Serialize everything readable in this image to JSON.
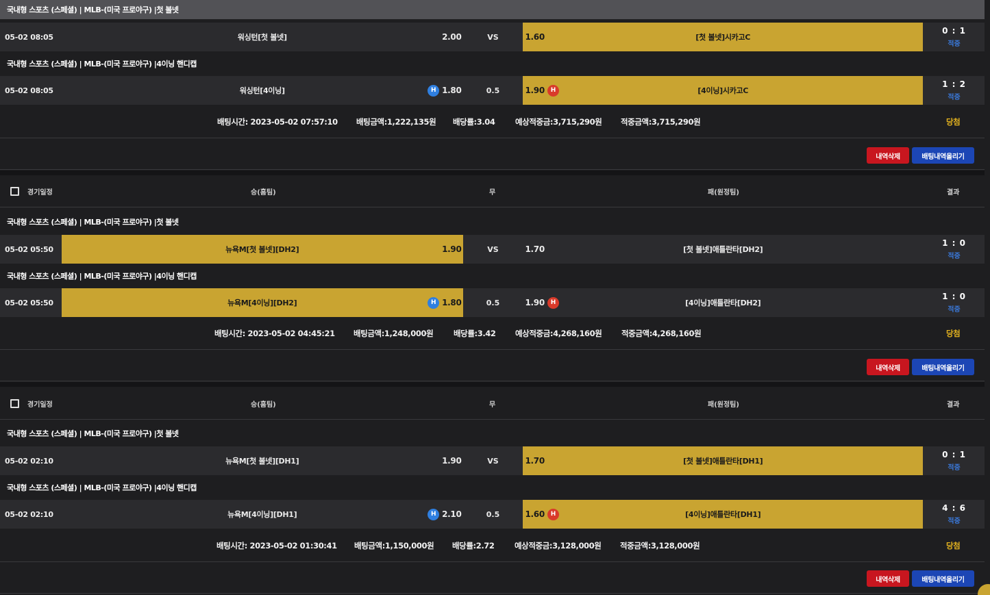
{
  "groups": [
    {
      "header": null,
      "rows": [
        {
          "league": "국내형 스포츠 (스페셜) | MLB-(미국 프로야구) |첫 볼넷",
          "date": "05-02 08:05",
          "home_team": "워싱턴[첫 볼넷]",
          "home_odds": "2.00",
          "draw": "VS",
          "away_odds": "1.60",
          "away_team": "[첫 볼넷]시카고C",
          "score": "0 : 1",
          "status": "적중"
        },
        {
          "league": "국내형 스포츠 (스페셜) | MLB-(미국 프로야구) |4이닝 핸디캡",
          "date": "05-02 08:05",
          "home_team": "워싱턴[4이닝]",
          "home_badge": "H",
          "home_odds": "1.80",
          "draw": "0.5",
          "away_odds": "1.90",
          "away_badge": "H",
          "away_team": "[4이닝]시카고C",
          "score": "1 : 2",
          "status": "적중"
        }
      ],
      "summary": {
        "bet_time": "배팅시간: 2023-05-02 07:57:10",
        "bet_amount": "배팅금액:1,222,135원",
        "odds": "배당률:3.04",
        "expected": "예상적중금:3,715,290원",
        "won_amount": "적중금액:3,715,290원",
        "result": "당첨"
      },
      "actions": {
        "delete_label": "내역삭제",
        "upload_label": "배팅내역올리기"
      }
    },
    {
      "header": {
        "date_col": "경기일정",
        "home_col": "승(홈팀)",
        "draw_col": "무",
        "away_col": "패(원정팀)",
        "result_col": "결과"
      },
      "rows": [
        {
          "league": "국내형 스포츠 (스페셜) | MLB-(미국 프로야구) |첫 볼넷",
          "date": "05-02 05:50",
          "home_team": "뉴욕M[첫 볼넷][DH2]",
          "home_odds": "1.90",
          "draw": "VS",
          "away_odds": "1.70",
          "away_team": "[첫 볼넷]애틀란타[DH2]",
          "score": "1 : 0",
          "status": "적중"
        },
        {
          "league": "국내형 스포츠 (스페셜) | MLB-(미국 프로야구) |4이닝 핸디캡",
          "date": "05-02 05:50",
          "home_team": "뉴욕M[4이닝][DH2]",
          "home_badge": "H",
          "home_odds": "1.80",
          "draw": "0.5",
          "away_odds": "1.90",
          "away_badge": "H",
          "away_team": "[4이닝]애틀란타[DH2]",
          "score": "1 : 0",
          "status": "적중"
        }
      ],
      "summary": {
        "bet_time": "배팅시간: 2023-05-02 04:45:21",
        "bet_amount": "배팅금액:1,248,000원",
        "odds": "배당률:3.42",
        "expected": "예상적중금:4,268,160원",
        "won_amount": "적중금액:4,268,160원",
        "result": "당첨"
      },
      "actions": {
        "delete_label": "내역삭제",
        "upload_label": "배팅내역올리기"
      }
    },
    {
      "header": {
        "date_col": "경기일정",
        "home_col": "승(홈팀)",
        "draw_col": "무",
        "away_col": "패(원정팀)",
        "result_col": "결과"
      },
      "rows": [
        {
          "league": "국내형 스포츠 (스페셜) | MLB-(미국 프로야구) |첫 볼넷",
          "date": "05-02 02:10",
          "home_team": "뉴욕M[첫 볼넷][DH1]",
          "home_odds": "1.90",
          "draw": "VS",
          "away_odds": "1.70",
          "away_team": "[첫 볼넷]애틀란타[DH1]",
          "score": "0 : 1",
          "status": "적중"
        },
        {
          "league": "국내형 스포츠 (스페셜) | MLB-(미국 프로야구) |4이닝 핸디캡",
          "date": "05-02 02:10",
          "home_team": "뉴욕M[4이닝][DH1]",
          "home_badge": "H",
          "home_odds": "2.10",
          "draw": "0.5",
          "away_odds": "1.60",
          "away_badge": "H",
          "away_team": "[4이닝]애틀란타[DH1]",
          "score": "4 : 6",
          "status": "적중"
        }
      ],
      "summary": {
        "bet_time": "배팅시간: 2023-05-02 01:30:41",
        "bet_amount": "배팅금액:1,150,000원",
        "odds": "배당률:2.72",
        "expected": "예상적중금:3,128,000원",
        "won_amount": "적중금액:3,128,000원",
        "result": "당첨"
      },
      "actions": {
        "delete_label": "내역삭제",
        "upload_label": "배팅내역올리기"
      }
    }
  ],
  "colors": {
    "selected_pick": "#c9a431",
    "status_text": "#3a78d8",
    "win_text": "#e3b21f",
    "delete_button": "#c8161f",
    "upload_button": "#1c46b5",
    "home_badge": "#2f7fe0",
    "away_badge": "#d93a2a"
  }
}
